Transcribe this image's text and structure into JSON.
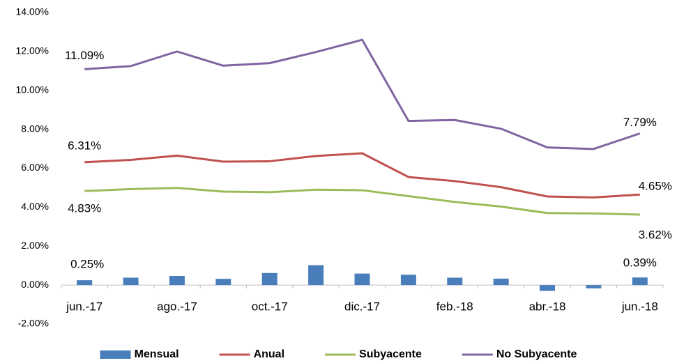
{
  "chart_data": {
    "type": "line",
    "categories": [
      "jun.-17",
      null,
      "ago.-17",
      null,
      "oct.-17",
      null,
      "dic.-17",
      null,
      "feb.-18",
      null,
      "abr.-18",
      null,
      "jun.-18"
    ],
    "series": [
      {
        "name": "Mensual",
        "type": "bar",
        "color": "#4a7ebb",
        "values": [
          0.25,
          0.38,
          0.47,
          0.32,
          0.62,
          1.02,
          0.59,
          0.53,
          0.38,
          0.33,
          -0.3,
          -0.17,
          0.39
        ],
        "value_labels": [
          "0.25%",
          null,
          null,
          null,
          null,
          null,
          null,
          null,
          null,
          null,
          null,
          null,
          "0.39%"
        ]
      },
      {
        "name": "Anual",
        "type": "line",
        "color": "#c0504d",
        "values": [
          6.31,
          6.43,
          6.65,
          6.34,
          6.36,
          6.63,
          6.77,
          5.55,
          5.34,
          5.03,
          4.55,
          4.5,
          4.65
        ],
        "value_labels": [
          "6.31%",
          null,
          null,
          null,
          null,
          null,
          null,
          null,
          null,
          null,
          null,
          null,
          "4.65%"
        ]
      },
      {
        "name": "Subyacente",
        "type": "line",
        "color": "#9bbb59",
        "values": [
          4.83,
          4.93,
          4.99,
          4.8,
          4.77,
          4.9,
          4.87,
          4.57,
          4.27,
          4.03,
          3.7,
          3.68,
          3.62
        ],
        "value_labels": [
          "4.83%",
          null,
          null,
          null,
          null,
          null,
          null,
          null,
          null,
          null,
          null,
          null,
          "3.62%"
        ]
      },
      {
        "name": "No Subyacente",
        "type": "line",
        "color": "#8064a2",
        "values": [
          11.09,
          11.25,
          12.0,
          11.27,
          11.4,
          11.97,
          12.6,
          8.43,
          8.48,
          8.03,
          7.07,
          6.99,
          7.79
        ],
        "value_labels": [
          "11.09%",
          null,
          null,
          null,
          null,
          null,
          null,
          null,
          null,
          null,
          null,
          null,
          "7.79%"
        ]
      }
    ],
    "ylim": [
      -2,
      14
    ],
    "yticks": [
      {
        "value": -2,
        "label": "-2.00%"
      },
      {
        "value": 0,
        "label": "0.00%"
      },
      {
        "value": 2,
        "label": "2.00%"
      },
      {
        "value": 4,
        "label": "4.00%"
      },
      {
        "value": 6,
        "label": "6.00%"
      },
      {
        "value": 8,
        "label": "8.00%"
      },
      {
        "value": 10,
        "label": "10.00%"
      },
      {
        "value": 12,
        "label": "12.00%"
      },
      {
        "value": 14,
        "label": "14.00%"
      }
    ],
    "grid": false,
    "legend": "bottom"
  }
}
